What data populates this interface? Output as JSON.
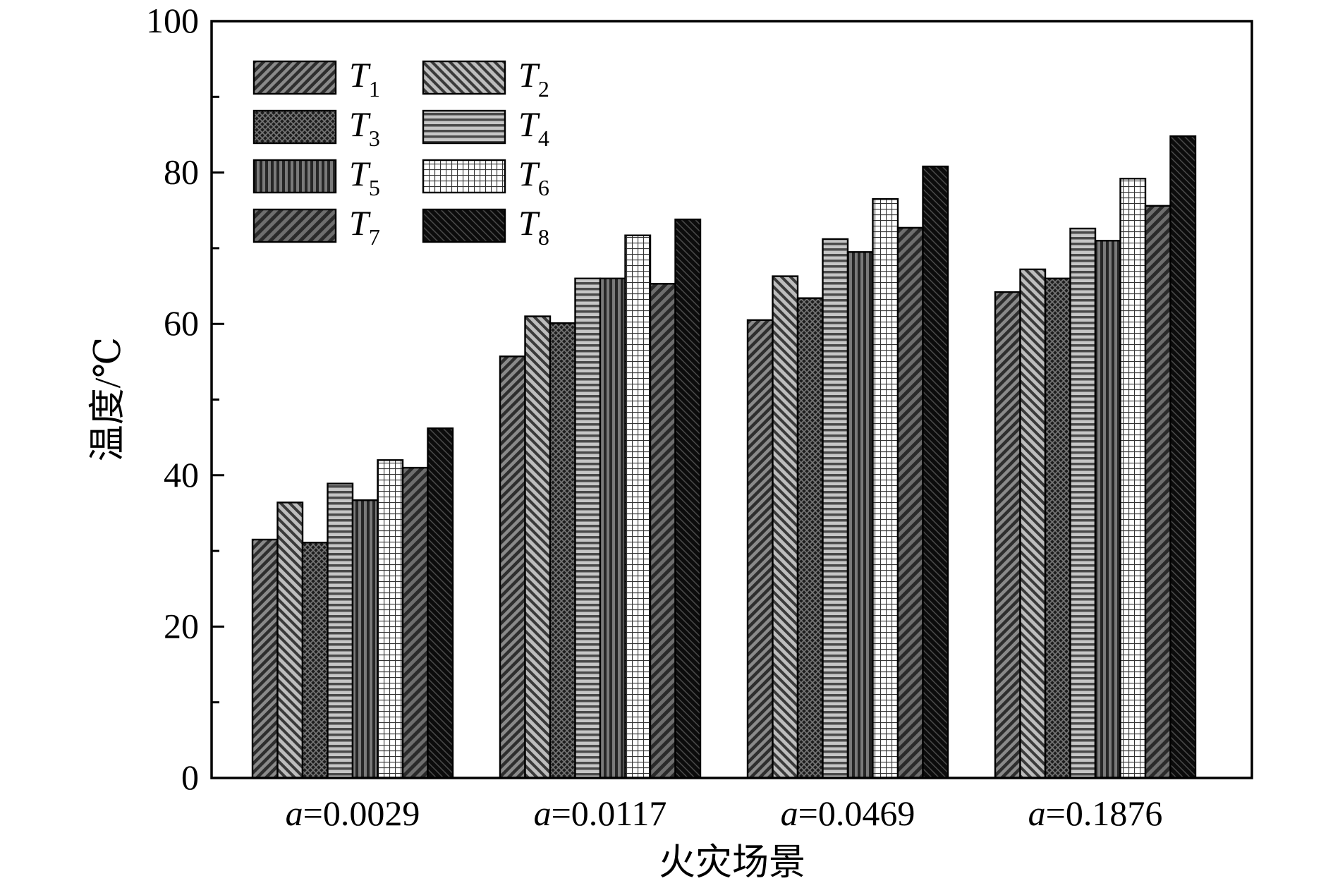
{
  "chart_data": {
    "type": "bar",
    "categories": [
      {
        "var": "a",
        "rest": "=0.0029"
      },
      {
        "var": "a",
        "rest": "=0.0117"
      },
      {
        "var": "a",
        "rest": "=0.0469"
      },
      {
        "var": "a",
        "rest": "=0.1876"
      }
    ],
    "series": [
      {
        "name": "T",
        "sub": "1",
        "pattern": "diag-left",
        "values": [
          31.5,
          55.7,
          60.5,
          64.2
        ]
      },
      {
        "name": "T",
        "sub": "2",
        "pattern": "diag-right",
        "values": [
          36.4,
          61.0,
          66.3,
          67.2
        ]
      },
      {
        "name": "T",
        "sub": "3",
        "pattern": "crosshatch",
        "values": [
          31.1,
          60.1,
          63.4,
          66.0
        ]
      },
      {
        "name": "T",
        "sub": "4",
        "pattern": "horizontal",
        "values": [
          38.9,
          66.0,
          71.2,
          72.6
        ]
      },
      {
        "name": "T",
        "sub": "5",
        "pattern": "vertical",
        "values": [
          36.7,
          66.0,
          69.5,
          71.0
        ]
      },
      {
        "name": "T",
        "sub": "6",
        "pattern": "grid",
        "values": [
          42.0,
          71.7,
          76.5,
          79.2
        ]
      },
      {
        "name": "T",
        "sub": "7",
        "pattern": "diag-left-2",
        "values": [
          41.0,
          65.3,
          72.7,
          75.6
        ]
      },
      {
        "name": "T",
        "sub": "8",
        "pattern": "solid-dark",
        "values": [
          46.2,
          73.8,
          80.8,
          84.8
        ]
      }
    ],
    "xlabel": "火灾场景",
    "ylabel": "温度/℃",
    "ylim": [
      0,
      100
    ],
    "yticks": [
      0,
      20,
      40,
      60,
      80,
      100
    ],
    "grid": false,
    "legend_position": "top-left"
  },
  "colors": {
    "dark_fill": "#3a3a3a",
    "mid_fill": "#8c8c8c",
    "light_fill": "#d8d8d8",
    "black": "#000000"
  }
}
